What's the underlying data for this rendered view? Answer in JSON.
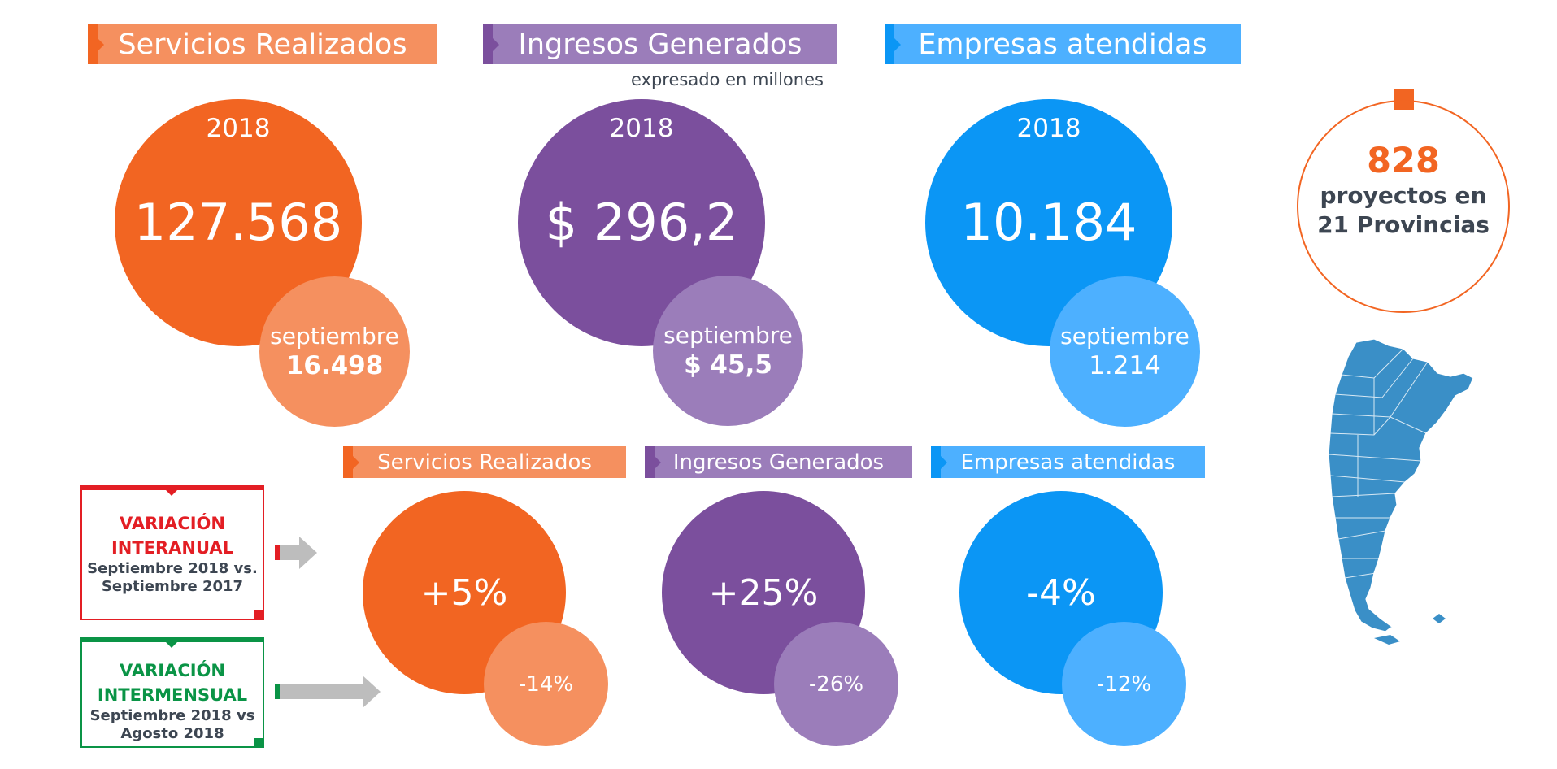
{
  "top_cards": [
    {
      "title": "Servicios Realizados",
      "note": "",
      "year": "2018",
      "year_value": "127.568",
      "month": "septiembre",
      "month_value": "16.498"
    },
    {
      "title": "Ingresos Generados",
      "note": "expresado en millones",
      "year": "2018",
      "year_value": "$ 296,2",
      "month": "septiembre",
      "month_value": "$ 45,5"
    },
    {
      "title": "Empresas atendidas",
      "note": "",
      "year": "2018",
      "year_value": "10.184",
      "month": "septiembre",
      "month_value": "1.214"
    }
  ],
  "bottom_cards": [
    {
      "title": "Servicios Realizados",
      "interanual": "+5%",
      "intermensual": "-14%"
    },
    {
      "title": "Ingresos Generados",
      "interanual": "+25%",
      "intermensual": "-26%"
    },
    {
      "title": "Empresas atendidas",
      "interanual": "-4%",
      "intermensual": "-12%"
    }
  ],
  "variations": {
    "interanual": {
      "title_line1": "VARIACIÓN",
      "title_line2": "INTERANUAL",
      "desc_line1": "Septiembre 2018 vs.",
      "desc_line2": "Septiembre 2017"
    },
    "intermensual": {
      "title_line1": "VARIACIÓN",
      "title_line2": "INTERMENSUAL",
      "desc_line1": "Septiembre 2018 vs",
      "desc_line2": "Agosto 2018"
    }
  },
  "projects": {
    "count": "828",
    "line1": "proyectos en",
    "line2": "21 Provincias"
  },
  "colors": {
    "orange": "#f26522",
    "orange_light": "#f5905f",
    "purple": "#7b4f9d",
    "purple_light": "#9b7dba",
    "blue": "#0b96f5",
    "blue_light": "#4db0ff",
    "red": "#e31e24",
    "green": "#0a9446",
    "map": "#3a8fc7",
    "text": "#3d4652"
  },
  "icons": {
    "map": "argentina-map-icon",
    "arrow": "right-arrow-icon"
  }
}
